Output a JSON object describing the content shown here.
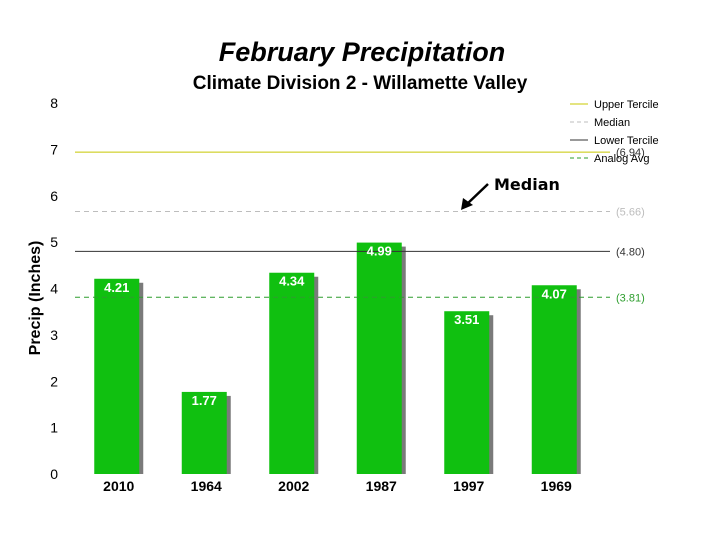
{
  "chart_data": {
    "type": "bar",
    "title": "February Precipitation",
    "subtitle": "Climate Division 2 - Willamette Valley",
    "ylabel": "Precip (Inches)",
    "xlabel": "",
    "ylim": [
      0,
      8
    ],
    "yticks": [
      "0",
      "1",
      "2",
      "3",
      "4",
      "5",
      "6",
      "7",
      "8"
    ],
    "categories": [
      "2010",
      "1964",
      "2002",
      "1987",
      "1997",
      "1969"
    ],
    "values": [
      4.21,
      1.77,
      4.34,
      4.99,
      3.51,
      4.07
    ],
    "value_labels": [
      "4.21",
      "1.77",
      "4.34",
      "4.99",
      "3.51",
      "4.07"
    ],
    "grid": false,
    "legend_position": "top-right",
    "reference_lines": [
      {
        "name": "Upper Tercile",
        "value": 6.94,
        "label": "(6.94)",
        "color": "#c8c800",
        "dash": false
      },
      {
        "name": "Median",
        "value": 5.66,
        "label": "(5.66)",
        "color": "#bdbdbd",
        "dash": true
      },
      {
        "name": "Lower Tercile",
        "value": 4.8,
        "label": "(4.80)",
        "color": "#333333",
        "dash": false
      },
      {
        "name": "Analog Avg",
        "value": 3.81,
        "label": "(3.81)",
        "color": "#2e9e2e",
        "dash": true
      }
    ],
    "annotation": {
      "text": "Median",
      "points_to": 5.66
    },
    "colors": {
      "bar": "#10c010",
      "bar_shadow": "#7a7a7a",
      "label_text": "#ffffff"
    }
  }
}
